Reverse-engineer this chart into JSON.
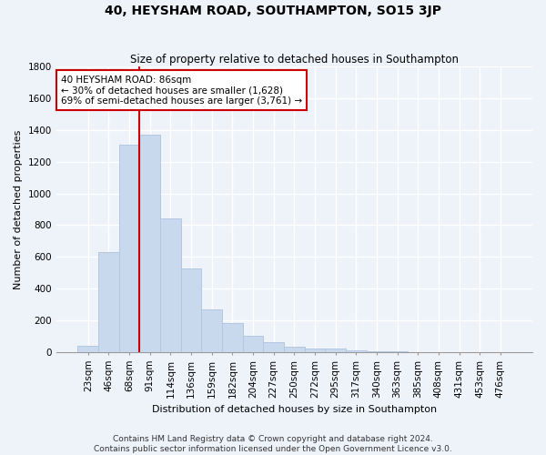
{
  "title": "40, HEYSHAM ROAD, SOUTHAMPTON, SO15 3JP",
  "subtitle": "Size of property relative to detached houses in Southampton",
  "xlabel": "Distribution of detached houses by size in Southampton",
  "ylabel": "Number of detached properties",
  "bar_color": "#c9d9ed",
  "bar_edge_color": "#afc5de",
  "categories": [
    "23sqm",
    "46sqm",
    "68sqm",
    "91sqm",
    "114sqm",
    "136sqm",
    "159sqm",
    "182sqm",
    "204sqm",
    "227sqm",
    "250sqm",
    "272sqm",
    "295sqm",
    "317sqm",
    "340sqm",
    "363sqm",
    "385sqm",
    "408sqm",
    "431sqm",
    "453sqm",
    "476sqm"
  ],
  "bar_heights": [
    40,
    630,
    1310,
    1370,
    840,
    530,
    270,
    185,
    100,
    60,
    35,
    25,
    20,
    10,
    5,
    3,
    2,
    2,
    1,
    1,
    1
  ],
  "annotation_text": "40 HEYSHAM ROAD: 86sqm\n← 30% of detached houses are smaller (1,628)\n69% of semi-detached houses are larger (3,761) →",
  "vline_bin_index": 3,
  "ylim": [
    0,
    1800
  ],
  "yticks": [
    0,
    200,
    400,
    600,
    800,
    1000,
    1200,
    1400,
    1600,
    1800
  ],
  "footnote_line1": "Contains HM Land Registry data © Crown copyright and database right 2024.",
  "footnote_line2": "Contains public sector information licensed under the Open Government Licence v3.0.",
  "background_color": "#eef2f9",
  "grid_color": "#ffffff",
  "annotation_box_color": "#ffffff",
  "annotation_box_edge": "#cc0000",
  "vline_color": "#cc0000",
  "title_fontsize": 10,
  "subtitle_fontsize": 8.5,
  "axis_label_fontsize": 8,
  "tick_fontsize": 7.5,
  "annotation_fontsize": 7.5,
  "footnote_fontsize": 6.5
}
